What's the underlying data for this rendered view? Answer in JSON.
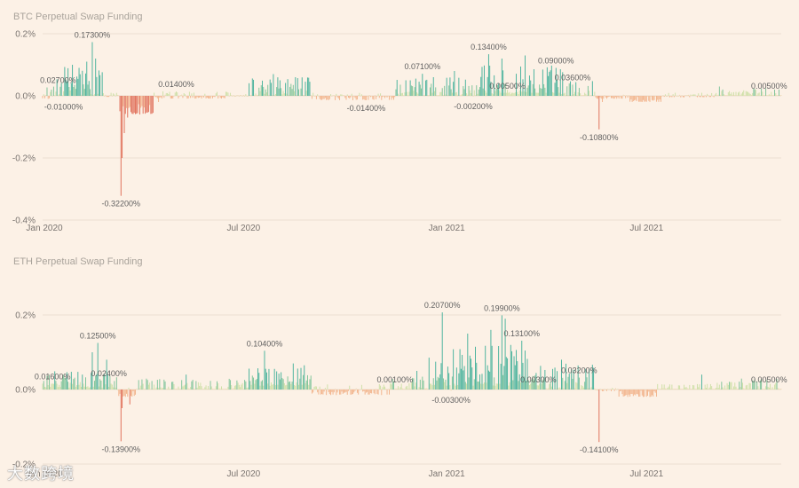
{
  "colors": {
    "background": "#fcf1e6",
    "high": "#4bb39d",
    "mid": "#7fc49a",
    "low": "#cfe0a8",
    "neutral": "#ecd8b0",
    "negSmall": "#f2b48c",
    "negLarge": "#e0705a"
  },
  "watermark": "大数跨境",
  "chart_data": [
    {
      "type": "bar",
      "title": "BTC Perpetual Swap Funding",
      "y_ticks": [
        "0.2%",
        "0.0%",
        "-0.2%",
        "-0.4%"
      ],
      "y_tick_values": [
        0.2,
        0.0,
        -0.2,
        -0.4
      ],
      "ylim": [
        -0.4,
        0.2
      ],
      "x_range": [
        "2020-01-01",
        "2021-10-31"
      ],
      "x_ticks": [
        "Jan 2020",
        "Jul 2020",
        "Jan 2021",
        "Jul 2021"
      ],
      "x_tick_dates": [
        "2020-01-01",
        "2020-07-01",
        "2021-01-01",
        "2021-07-01"
      ],
      "data_labels": [
        {
          "text": "0.17300%",
          "date": "2020-02-15",
          "value": 0.173
        },
        {
          "text": "0.02700%",
          "date": "2020-01-15",
          "value": 0.027
        },
        {
          "text": "-0.01000%",
          "date": "2020-01-20",
          "value": -0.01
        },
        {
          "text": "-0.32200%",
          "date": "2020-03-12",
          "value": -0.322
        },
        {
          "text": "0.01400%",
          "date": "2020-05-01",
          "value": 0.014
        },
        {
          "text": "-0.01400%",
          "date": "2020-10-20",
          "value": -0.014
        },
        {
          "text": "0.07100%",
          "date": "2020-12-10",
          "value": 0.071
        },
        {
          "text": "0.13400%",
          "date": "2021-02-08",
          "value": 0.134
        },
        {
          "text": "-0.00200%",
          "date": "2021-01-25",
          "value": -0.002
        },
        {
          "text": "0.00500%",
          "date": "2021-02-25",
          "value": 0.005
        },
        {
          "text": "0.09000%",
          "date": "2021-04-10",
          "value": 0.09
        },
        {
          "text": "0.03600%",
          "date": "2021-04-25",
          "value": 0.036
        },
        {
          "text": "-0.10800%",
          "date": "2021-05-19",
          "value": -0.108
        },
        {
          "text": "0.00500%",
          "date": "2021-10-20",
          "value": 0.005
        }
      ],
      "series": [
        {
          "name": "Funding rate (%)",
          "segments": [
            {
              "start": "2020-01-01",
              "end": "2020-01-12",
              "min": -0.01,
              "max": 0.03,
              "spikes": [
                [
                  "2020-01-05",
                  0.027
                ],
                [
                  "2020-01-09",
                  0.02
                ]
              ]
            },
            {
              "start": "2020-01-13",
              "end": "2020-02-25",
              "min": 0.0,
              "max": 0.1,
              "spikes": [
                [
                  "2020-02-15",
                  0.173
                ],
                [
                  "2020-02-10",
                  0.11
                ],
                [
                  "2020-02-18",
                  0.12
                ],
                [
                  "2020-01-28",
                  0.1
                ],
                [
                  "2020-02-03",
                  0.09
                ]
              ]
            },
            {
              "start": "2020-02-26",
              "end": "2020-03-10",
              "min": -0.004,
              "max": 0.01,
              "spikes": []
            },
            {
              "start": "2020-03-11",
              "end": "2020-04-10",
              "min": -0.06,
              "max": -0.01,
              "spikes": [
                [
                  "2020-03-12",
                  -0.322
                ],
                [
                  "2020-03-13",
                  -0.2
                ],
                [
                  "2020-03-15",
                  -0.12
                ],
                [
                  "2020-03-18",
                  -0.07
                ]
              ]
            },
            {
              "start": "2020-04-11",
              "end": "2020-06-20",
              "min": -0.01,
              "max": 0.015,
              "spikes": [
                [
                  "2020-05-01",
                  0.014
                ],
                [
                  "2020-04-15",
                  -0.02
                ]
              ]
            },
            {
              "start": "2020-06-21",
              "end": "2020-07-05",
              "min": -0.003,
              "max": 0.006,
              "spikes": []
            },
            {
              "start": "2020-07-06",
              "end": "2020-08-31",
              "min": 0.0,
              "max": 0.06,
              "spikes": [
                [
                  "2020-07-28",
                  0.07
                ],
                [
                  "2020-08-17",
                  0.06
                ],
                [
                  "2020-08-03",
                  0.05
                ]
              ]
            },
            {
              "start": "2020-09-01",
              "end": "2020-11-15",
              "min": -0.014,
              "max": 0.01,
              "spikes": [
                [
                  "2020-10-20",
                  -0.014
                ],
                [
                  "2020-09-15",
                  -0.012
                ]
              ]
            },
            {
              "start": "2020-11-16",
              "end": "2020-12-31",
              "min": 0.0,
              "max": 0.06,
              "spikes": [
                [
                  "2020-12-10",
                  0.071
                ],
                [
                  "2020-11-25",
                  0.05
                ],
                [
                  "2020-12-20",
                  0.06
                ]
              ]
            },
            {
              "start": "2021-01-01",
              "end": "2021-01-31",
              "min": 0.0,
              "max": 0.07,
              "spikes": [
                [
                  "2021-01-08",
                  0.08
                ],
                [
                  "2021-01-25",
                  -0.002
                ]
              ]
            },
            {
              "start": "2021-02-01",
              "end": "2021-04-18",
              "min": 0.005,
              "max": 0.1,
              "spikes": [
                [
                  "2021-02-08",
                  0.134
                ],
                [
                  "2021-02-20",
                  0.12
                ],
                [
                  "2021-03-13",
                  0.13
                ],
                [
                  "2021-04-10",
                  0.09
                ],
                [
                  "2021-02-28",
                  0.005
                ]
              ]
            },
            {
              "start": "2021-04-19",
              "end": "2021-05-15",
              "min": 0.0,
              "max": 0.05,
              "spikes": [
                [
                  "2021-04-25",
                  0.036
                ]
              ]
            },
            {
              "start": "2021-05-16",
              "end": "2021-06-15",
              "min": -0.01,
              "max": 0.005,
              "spikes": [
                [
                  "2021-05-19",
                  -0.108
                ],
                [
                  "2021-05-22",
                  -0.02
                ]
              ]
            },
            {
              "start": "2021-06-16",
              "end": "2021-07-15",
              "min": -0.02,
              "max": 0.0,
              "spikes": []
            },
            {
              "start": "2021-07-16",
              "end": "2021-08-31",
              "min": -0.005,
              "max": 0.01,
              "spikes": []
            },
            {
              "start": "2021-09-01",
              "end": "2021-10-31",
              "min": 0.0,
              "max": 0.025,
              "spikes": [
                [
                  "2021-09-05",
                  0.03
                ],
                [
                  "2021-10-20",
                  0.005
                ]
              ]
            }
          ]
        }
      ]
    },
    {
      "type": "bar",
      "title": "ETH Perpetual Swap Funding",
      "y_ticks": [
        "0.2%",
        "0.0%",
        "-0.2%"
      ],
      "y_tick_values": [
        0.2,
        0.0,
        -0.2
      ],
      "ylim": [
        -0.2,
        0.2
      ],
      "x_range": [
        "2020-01-01",
        "2021-10-31"
      ],
      "x_ticks": [
        "Jan 2020",
        "Jul 2020",
        "Jan 2021",
        "Jul 2021"
      ],
      "x_tick_dates": [
        "2020-01-01",
        "2020-07-01",
        "2021-01-01",
        "2021-07-01"
      ],
      "data_labels": [
        {
          "text": "0.12500%",
          "date": "2020-02-20",
          "value": 0.125
        },
        {
          "text": "0.01600%",
          "date": "2020-01-10",
          "value": 0.016
        },
        {
          "text": "0.02400%",
          "date": "2020-03-01",
          "value": 0.024
        },
        {
          "text": "-0.13900%",
          "date": "2020-03-12",
          "value": -0.139
        },
        {
          "text": "0.10400%",
          "date": "2020-07-20",
          "value": 0.104
        },
        {
          "text": "0.00100%",
          "date": "2020-11-15",
          "value": 0.001
        },
        {
          "text": "0.20700%",
          "date": "2020-12-28",
          "value": 0.207
        },
        {
          "text": "-0.00300%",
          "date": "2021-01-05",
          "value": -0.003
        },
        {
          "text": "0.19900%",
          "date": "2021-02-20",
          "value": 0.199
        },
        {
          "text": "0.13100%",
          "date": "2021-03-10",
          "value": 0.131
        },
        {
          "text": "0.00300%",
          "date": "2021-03-25",
          "value": 0.003
        },
        {
          "text": "0.03200%",
          "date": "2021-05-01",
          "value": 0.032
        },
        {
          "text": "-0.14100%",
          "date": "2021-05-19",
          "value": -0.141
        },
        {
          "text": "0.00500%",
          "date": "2021-10-20",
          "value": 0.005
        }
      ],
      "series": [
        {
          "name": "Funding rate (%)",
          "segments": [
            {
              "start": "2020-01-01",
              "end": "2020-03-08",
              "min": 0.005,
              "max": 0.05,
              "spikes": [
                [
                  "2020-02-20",
                  0.125
                ],
                [
                  "2020-02-15",
                  0.1
                ],
                [
                  "2020-02-28",
                  0.08
                ],
                [
                  "2020-01-10",
                  0.016
                ]
              ]
            },
            {
              "start": "2020-03-09",
              "end": "2020-03-25",
              "min": -0.02,
              "max": 0.005,
              "spikes": [
                [
                  "2020-03-12",
                  -0.139
                ],
                [
                  "2020-03-13",
                  -0.05
                ],
                [
                  "2020-03-20",
                  -0.04
                ]
              ]
            },
            {
              "start": "2020-03-26",
              "end": "2020-07-05",
              "min": 0.0,
              "max": 0.03,
              "spikes": [
                [
                  "2020-05-10",
                  0.04
                ]
              ]
            },
            {
              "start": "2020-07-06",
              "end": "2020-08-31",
              "min": 0.01,
              "max": 0.06,
              "spikes": [
                [
                  "2020-07-20",
                  0.104
                ],
                [
                  "2020-08-15",
                  0.07
                ],
                [
                  "2020-08-25",
                  0.065
                ]
              ]
            },
            {
              "start": "2020-09-01",
              "end": "2020-11-10",
              "min": -0.015,
              "max": 0.015,
              "spikes": [
                [
                  "2020-09-10",
                  -0.012
                ]
              ]
            },
            {
              "start": "2020-11-11",
              "end": "2020-12-15",
              "min": 0.001,
              "max": 0.04,
              "spikes": [
                [
                  "2020-11-15",
                  0.001
                ],
                [
                  "2020-12-05",
                  0.05
                ]
              ]
            },
            {
              "start": "2020-12-16",
              "end": "2021-03-31",
              "min": 0.01,
              "max": 0.12,
              "spikes": [
                [
                  "2020-12-28",
                  0.207
                ],
                [
                  "2021-02-20",
                  0.199
                ],
                [
                  "2021-02-23",
                  0.19
                ],
                [
                  "2021-03-10",
                  0.131
                ],
                [
                  "2021-01-05",
                  -0.003
                ],
                [
                  "2021-02-10",
                  0.16
                ],
                [
                  "2021-01-20",
                  0.15
                ]
              ]
            },
            {
              "start": "2021-04-01",
              "end": "2021-05-15",
              "min": 0.0,
              "max": 0.07,
              "spikes": [
                [
                  "2021-04-15",
                  0.08
                ],
                [
                  "2021-05-01",
                  0.032
                ]
              ]
            },
            {
              "start": "2021-05-16",
              "end": "2021-06-05",
              "min": -0.005,
              "max": 0.005,
              "spikes": [
                [
                  "2021-05-19",
                  -0.141
                ]
              ]
            },
            {
              "start": "2021-06-06",
              "end": "2021-07-10",
              "min": -0.02,
              "max": -0.002,
              "spikes": []
            },
            {
              "start": "2021-07-11",
              "end": "2021-08-31",
              "min": 0.0,
              "max": 0.015,
              "spikes": [
                [
                  "2021-08-20",
                  0.04
                ]
              ]
            },
            {
              "start": "2021-09-01",
              "end": "2021-10-31",
              "min": 0.0,
              "max": 0.03,
              "spikes": [
                [
                  "2021-10-20",
                  0.005
                ]
              ]
            }
          ]
        }
      ]
    }
  ]
}
